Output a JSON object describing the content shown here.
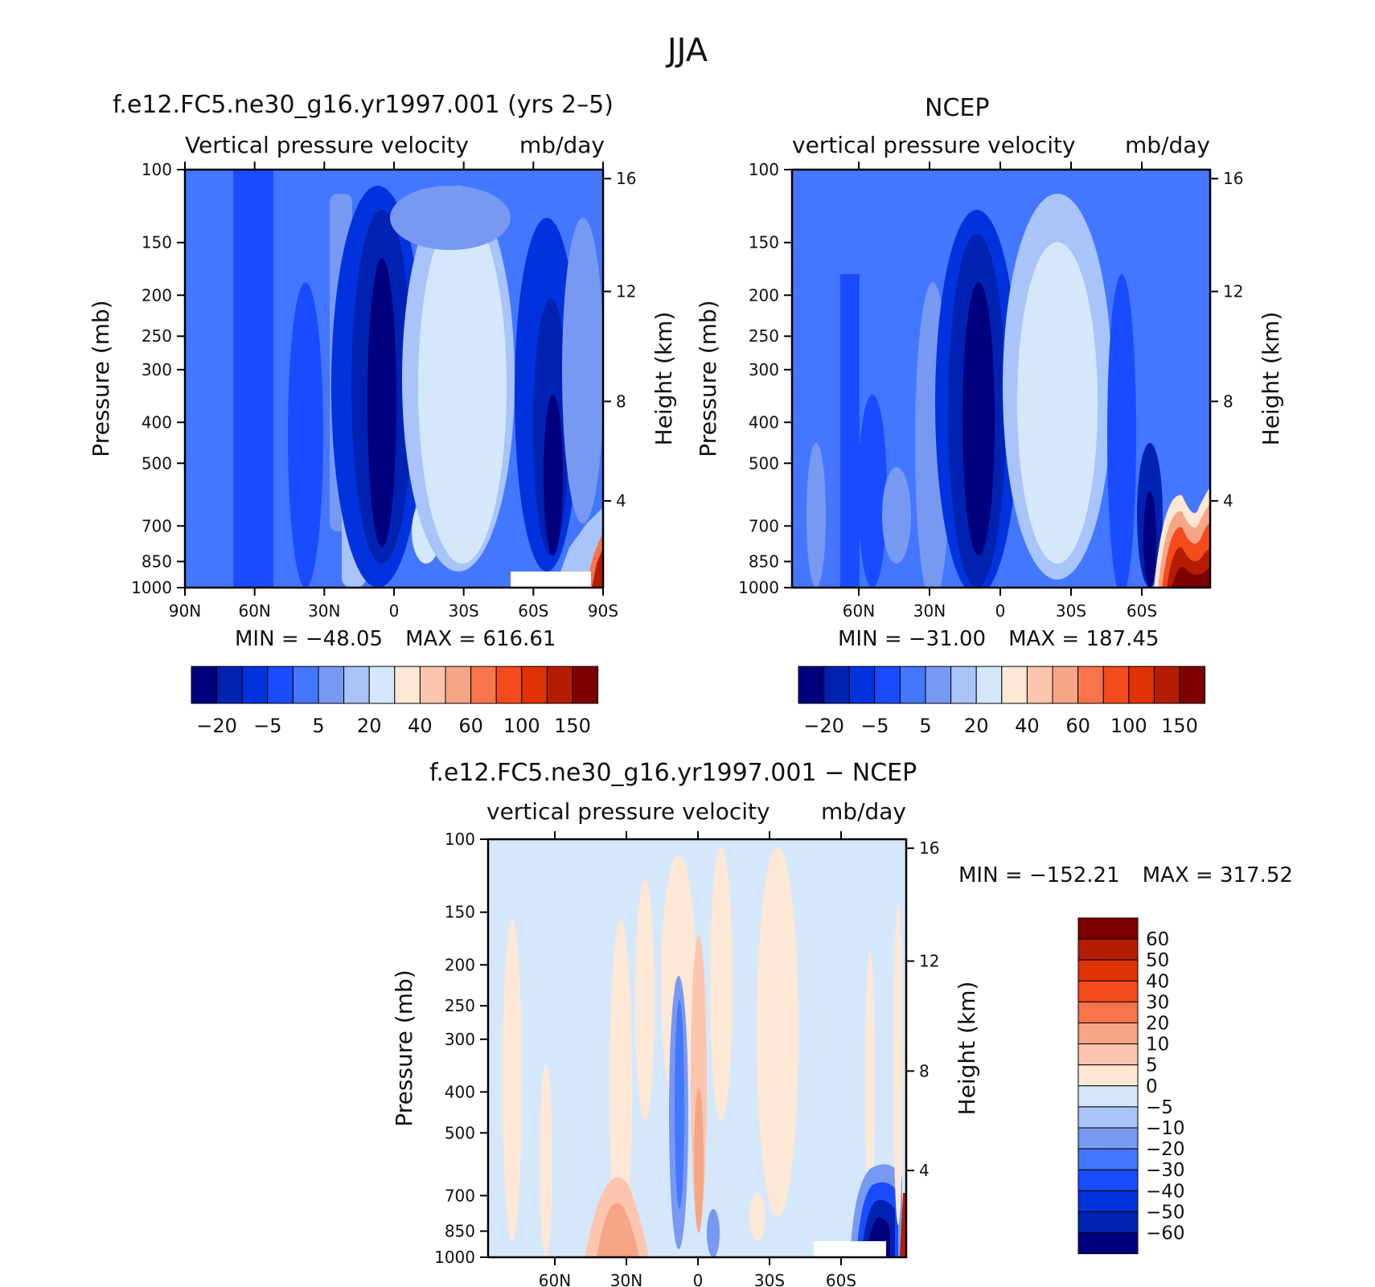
{
  "figure_title": "JJA",
  "chart_data": [
    {
      "type": "heatmap",
      "title": "f.e12.FC5.ne30_g16.yr1997.001 (yrs 2–5)",
      "left_subtitle": "Vertical pressure velocity",
      "right_subtitle": "mb/day",
      "ylabel": "Pressure (mb)",
      "ylabel_right": "Height (km)",
      "xticks": [
        "90N",
        "60N",
        "30N",
        "0",
        "30S",
        "60S",
        "90S"
      ],
      "yticks": [
        "100",
        "150",
        "200",
        "250",
        "300",
        "400",
        "500",
        "700",
        "850",
        "1000"
      ],
      "yticks_right": [
        "16",
        "12",
        "8",
        "4"
      ],
      "min_label": "MIN = −48.05",
      "max_label": "MAX = 616.61",
      "colorbar": {
        "orientation": "horizontal",
        "colors": [
          "#00007f",
          "#0022b2",
          "#0033dd",
          "#1a4cff",
          "#4477ff",
          "#7799f2",
          "#a8c4f8",
          "#d5e8fb",
          "#fde7d5",
          "#fcc6ae",
          "#f7a587",
          "#f8744b",
          "#f44b1c",
          "#e03305",
          "#b51d03",
          "#7d0000"
        ],
        "labels": [
          "−20",
          "−5",
          "5",
          "20",
          "40",
          "60",
          "100",
          "150"
        ]
      }
    },
    {
      "type": "heatmap",
      "title": "NCEP",
      "left_subtitle": "vertical pressure velocity",
      "right_subtitle": "mb/day",
      "ylabel": "Pressure (mb)",
      "ylabel_right": "Height (km)",
      "xticks": [
        "60N",
        "30N",
        "0",
        "30S",
        "60S"
      ],
      "yticks": [
        "100",
        "150",
        "200",
        "250",
        "300",
        "400",
        "500",
        "700",
        "850",
        "1000"
      ],
      "yticks_right": [
        "16",
        "12",
        "8",
        "4"
      ],
      "min_label": "MIN = −31.00",
      "max_label": "MAX = 187.45",
      "colorbar": {
        "orientation": "horizontal",
        "colors": [
          "#00007f",
          "#0022b2",
          "#0033dd",
          "#1a4cff",
          "#4477ff",
          "#7799f2",
          "#a8c4f8",
          "#d5e8fb",
          "#fde7d5",
          "#fcc6ae",
          "#f7a587",
          "#f8744b",
          "#f44b1c",
          "#e03305",
          "#b51d03",
          "#7d0000"
        ],
        "labels": [
          "−20",
          "−5",
          "5",
          "20",
          "40",
          "60",
          "100",
          "150"
        ]
      }
    },
    {
      "type": "heatmap",
      "title": "f.e12.FC5.ne30_g16.yr1997.001 − NCEP",
      "left_subtitle": "vertical pressure velocity",
      "right_subtitle": "mb/day",
      "ylabel": "Pressure (mb)",
      "ylabel_right": "Height (km)",
      "xticks": [
        "60N",
        "30N",
        "0",
        "30S",
        "60S"
      ],
      "yticks": [
        "100",
        "150",
        "200",
        "250",
        "300",
        "400",
        "500",
        "700",
        "850",
        "1000"
      ],
      "yticks_right": [
        "16",
        "12",
        "8",
        "4"
      ],
      "min_label": "MIN = −152.21",
      "max_label": "MAX = 317.52",
      "colorbar": {
        "orientation": "vertical",
        "colors": [
          "#7d0000",
          "#b51d03",
          "#e03305",
          "#f44b1c",
          "#f8744b",
          "#f7a587",
          "#fcc6ae",
          "#fde7d5",
          "#d5e8fb",
          "#a8c4f8",
          "#7799f2",
          "#4477ff",
          "#1a4cff",
          "#0033dd",
          "#0022b2",
          "#00007f"
        ],
        "labels": [
          "60",
          "50",
          "40",
          "30",
          "20",
          "10",
          "5",
          "0",
          "−5",
          "−10",
          "−20",
          "−30",
          "−40",
          "−50",
          "−60"
        ]
      }
    }
  ]
}
